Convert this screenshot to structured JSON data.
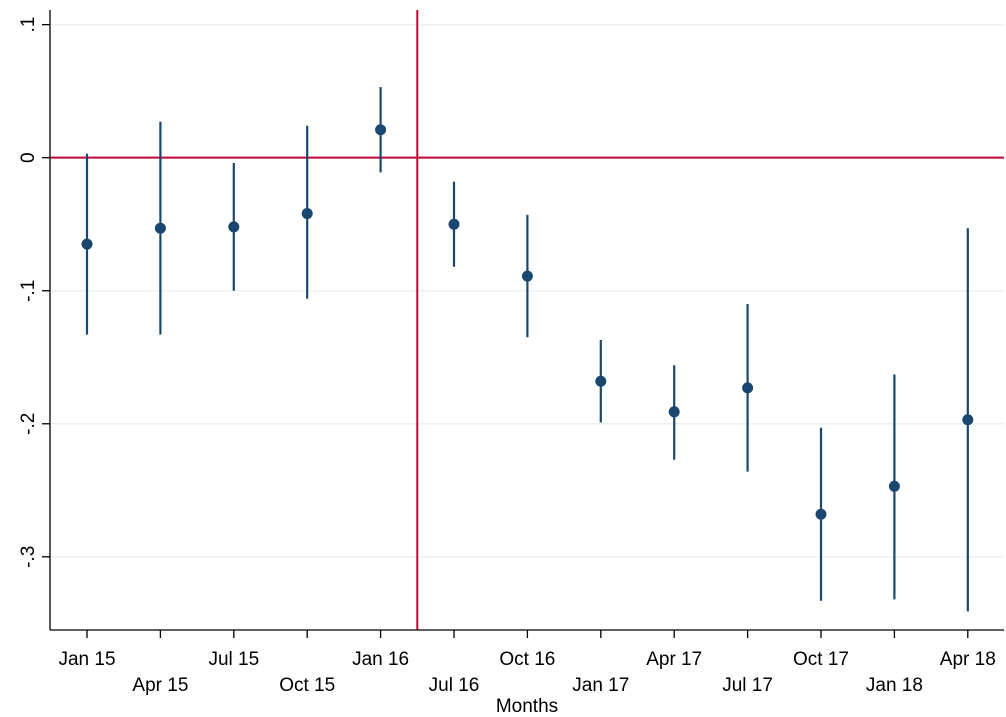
{
  "chart_data": {
    "type": "scatter",
    "title": "",
    "xlabel": "Months",
    "ylabel": "",
    "ylim": [
      -0.355,
      0.111
    ],
    "yticks": [
      0.1,
      0,
      -0.1,
      -0.2,
      -0.3
    ],
    "ytick_labels": [
      ".1",
      "0",
      "-.1",
      "-.2",
      "-.3"
    ],
    "grid": true,
    "categories": [
      "Jan 15",
      "Apr 15",
      "Jul 15",
      "Oct 15",
      "Jan 16",
      "Jul 16",
      "Oct 16",
      "Jan 17",
      "Apr 17",
      "Jul 17",
      "Oct 17",
      "Jan 18",
      "Apr 18"
    ],
    "x_positions": [
      0,
      1,
      2,
      3,
      4,
      5,
      6,
      7,
      8,
      9,
      10,
      11,
      12
    ],
    "estimates": [
      -0.065,
      -0.053,
      -0.052,
      -0.042,
      0.021,
      -0.05,
      -0.089,
      -0.168,
      -0.191,
      -0.173,
      -0.268,
      -0.247,
      -0.197
    ],
    "ci_low": [
      -0.133,
      -0.133,
      -0.1,
      -0.106,
      -0.011,
      -0.082,
      -0.135,
      -0.199,
      -0.227,
      -0.236,
      -0.333,
      -0.332,
      -0.341
    ],
    "ci_high": [
      0.003,
      0.027,
      -0.004,
      0.024,
      0.053,
      -0.018,
      -0.043,
      -0.137,
      -0.156,
      -0.11,
      -0.203,
      -0.163,
      -0.053
    ],
    "reference_lines": {
      "horizontal_y": 0,
      "vertical_x": 4.5
    },
    "colors": {
      "marker": "#1a476f",
      "reference": "#c10534",
      "grid": "#eaf2f3"
    }
  }
}
